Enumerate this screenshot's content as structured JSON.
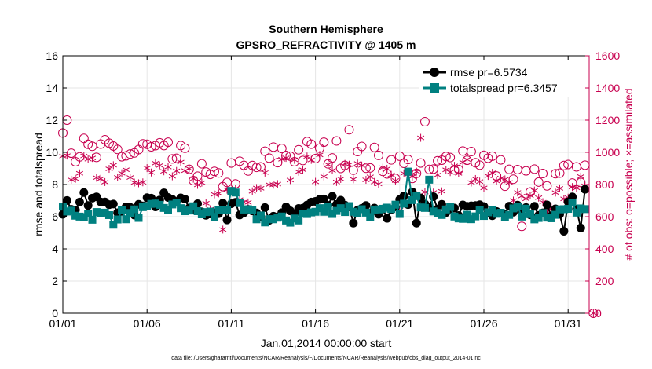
{
  "chart_data": {
    "type": "line",
    "title_line1": "Southern Hemisphere",
    "title_line2": "GPSRO_REFRACTIVITY @ 1405 m",
    "xlabel": "Jan.01,2014 00:00:00 start",
    "ylabel_left": "rmse and totalspread",
    "ylabel_right": "# of obs: o=possible; ×=assimilated",
    "footnote": "data file: /Users/gharamti/Documents/NCAR/Reanalysis/~/Documents/NCAR/Reanalysis/webpub/obs_diag_output_2014-01.nc",
    "xlim": [
      0,
      31.25
    ],
    "ylim_left": [
      0,
      16
    ],
    "ylim_right": [
      0,
      1600
    ],
    "x_tick_values": [
      0,
      5,
      10,
      15,
      20,
      25,
      30
    ],
    "x_tick_labels": [
      "01/01",
      "01/06",
      "01/11",
      "01/16",
      "01/21",
      "01/26",
      "01/31"
    ],
    "y_left_ticks": [
      "0",
      "2",
      "4",
      "6",
      "8",
      "10",
      "12",
      "14",
      "16"
    ],
    "y_right_ticks": [
      "0",
      "200",
      "400",
      "600",
      "800",
      "1000",
      "1200",
      "1400",
      "1600"
    ],
    "legend": {
      "position": "top-right",
      "rmse_label": "rmse pr=6.5734",
      "spread_label": "totalspread pr=6.3457"
    },
    "colors": {
      "rmse": "#000000",
      "spread": "#008080",
      "obs": "#c8004f",
      "axis": "#000000",
      "grid": "#e6e6e6"
    },
    "bin_width_days": 0.25,
    "anchors": {
      "rmse": [
        [
          0,
          6.6
        ],
        [
          1,
          6.7
        ],
        [
          2,
          7.0
        ],
        [
          3,
          6.5
        ],
        [
          4,
          6.4
        ],
        [
          5,
          6.8
        ],
        [
          6,
          7.1
        ],
        [
          7,
          6.8
        ],
        [
          8,
          6.5
        ],
        [
          9,
          6.3
        ],
        [
          10,
          6.6
        ],
        [
          11,
          6.4
        ],
        [
          12,
          6.2
        ],
        [
          13,
          6.1
        ],
        [
          14,
          6.6
        ],
        [
          15,
          7.1
        ],
        [
          16,
          6.9
        ],
        [
          17,
          6.5
        ],
        [
          18,
          6.3
        ],
        [
          19,
          6.4
        ],
        [
          20,
          6.8
        ],
        [
          21,
          7.4
        ],
        [
          22,
          6.8
        ],
        [
          23,
          6.5
        ],
        [
          24,
          6.3
        ],
        [
          25,
          6.4
        ],
        [
          26,
          6.6
        ],
        [
          27,
          6.5
        ],
        [
          28,
          6.3
        ],
        [
          29,
          6.4
        ],
        [
          30,
          6.8
        ],
        [
          31,
          7.0
        ]
      ],
      "spread": [
        [
          0,
          6.3
        ],
        [
          1,
          6.2
        ],
        [
          2,
          6.1
        ],
        [
          3,
          6.1
        ],
        [
          4,
          6.1
        ],
        [
          5,
          6.4
        ],
        [
          6,
          6.6
        ],
        [
          7,
          6.6
        ],
        [
          8,
          6.3
        ],
        [
          9,
          6.1
        ],
        [
          10,
          6.8
        ],
        [
          11,
          6.2
        ],
        [
          12,
          5.9
        ],
        [
          13,
          5.7
        ],
        [
          14,
          6.0
        ],
        [
          15,
          6.3
        ],
        [
          16,
          6.5
        ],
        [
          17,
          6.5
        ],
        [
          18,
          6.3
        ],
        [
          19,
          6.2
        ],
        [
          20,
          6.5
        ],
        [
          21,
          7.0
        ],
        [
          22,
          6.6
        ],
        [
          23,
          6.3
        ],
        [
          24,
          6.0
        ],
        [
          25,
          6.1
        ],
        [
          26,
          6.3
        ],
        [
          27,
          6.3
        ],
        [
          28,
          6.1
        ],
        [
          29,
          6.2
        ],
        [
          30,
          6.5
        ],
        [
          31,
          6.6
        ]
      ],
      "possible": [
        [
          0,
          1000
        ],
        [
          1,
          1020
        ],
        [
          2,
          980
        ],
        [
          3,
          1010
        ],
        [
          4,
          990
        ],
        [
          5,
          1020
        ],
        [
          6,
          980
        ],
        [
          7,
          960
        ],
        [
          8,
          880
        ],
        [
          9,
          800
        ],
        [
          10,
          880
        ],
        [
          11,
          860
        ],
        [
          12,
          940
        ],
        [
          13,
          990
        ],
        [
          14,
          1000
        ],
        [
          15,
          990
        ],
        [
          16,
          1000
        ],
        [
          17,
          980
        ],
        [
          18,
          960
        ],
        [
          19,
          940
        ],
        [
          20,
          920
        ],
        [
          21,
          900
        ],
        [
          22,
          880
        ],
        [
          23,
          950
        ],
        [
          24,
          1000
        ],
        [
          25,
          960
        ],
        [
          26,
          880
        ],
        [
          27,
          840
        ],
        [
          28,
          820
        ],
        [
          29,
          800
        ],
        [
          30,
          860
        ],
        [
          31,
          880
        ]
      ],
      "assimilated": [
        [
          0,
          900
        ],
        [
          1,
          910
        ],
        [
          2,
          880
        ],
        [
          3,
          910
        ],
        [
          4,
          890
        ],
        [
          5,
          880
        ],
        [
          6,
          880
        ],
        [
          7,
          860
        ],
        [
          8,
          780
        ],
        [
          9,
          700
        ],
        [
          10,
          780
        ],
        [
          11,
          760
        ],
        [
          12,
          850
        ],
        [
          13,
          900
        ],
        [
          14,
          910
        ],
        [
          15,
          900
        ],
        [
          16,
          900
        ],
        [
          17,
          880
        ],
        [
          18,
          860
        ],
        [
          19,
          840
        ],
        [
          20,
          820
        ],
        [
          21,
          800
        ],
        [
          22,
          780
        ],
        [
          23,
          850
        ],
        [
          24,
          900
        ],
        [
          25,
          860
        ],
        [
          26,
          780
        ],
        [
          27,
          740
        ],
        [
          28,
          720
        ],
        [
          29,
          700
        ],
        [
          30,
          760
        ],
        [
          31,
          780
        ]
      ]
    },
    "extra_rmse_points": [
      [
        1.25,
        7.5
      ],
      [
        9.75,
        5.8
      ],
      [
        17.25,
        5.6
      ],
      [
        21.0,
        5.6
      ],
      [
        29.75,
        5.1
      ],
      [
        30.75,
        5.3
      ],
      [
        31.0,
        7.7
      ],
      [
        19.25,
        5.9
      ]
    ],
    "extra_spread_points": [
      [
        10.0,
        7.6
      ],
      [
        10.25,
        7.5
      ],
      [
        20.5,
        8.8
      ],
      [
        21.75,
        8.3
      ],
      [
        3.0,
        5.5
      ]
    ],
    "extra_possible_points": [
      [
        0.25,
        1200
      ],
      [
        0.0,
        1120
      ],
      [
        17.0,
        1140
      ],
      [
        21.5,
        1190
      ],
      [
        27.25,
        540
      ],
      [
        29.0,
        620
      ],
      [
        31.0,
        920
      ],
      [
        31.5,
        0
      ]
    ],
    "extra_assimilated_points": [
      [
        9.5,
        520
      ],
      [
        21.25,
        1090
      ],
      [
        20.0,
        640
      ],
      [
        28.75,
        640
      ],
      [
        31.5,
        0
      ]
    ]
  }
}
